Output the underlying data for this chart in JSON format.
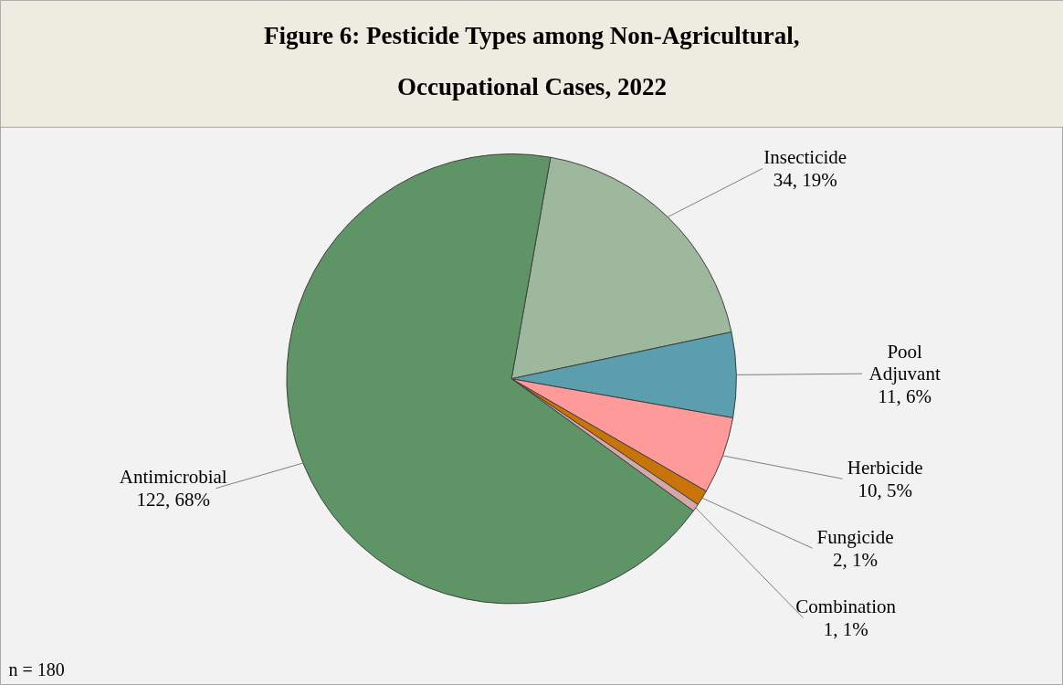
{
  "chart_data": {
    "type": "pie",
    "title": "Figure 6: Pesticide Types among Non-Agricultural, Occupational Cases, 2022",
    "categories": [
      "Insecticide",
      "Pool Adjuvant",
      "Herbicide",
      "Fungicide",
      "Combination",
      "Antimicrobial"
    ],
    "values": [
      34,
      11,
      10,
      2,
      1,
      122
    ],
    "colors": [
      "#9db89c",
      "#5b9eae",
      "#ff9a9a",
      "#c8740a",
      "#d4a8a8",
      "#5f9466"
    ],
    "value_labels": [
      "34, 19%",
      "11, 6%",
      "10, 5%",
      "2, 1%",
      "1, 1%",
      "122, 68%"
    ],
    "annotations": [
      "n = 180"
    ]
  }
}
